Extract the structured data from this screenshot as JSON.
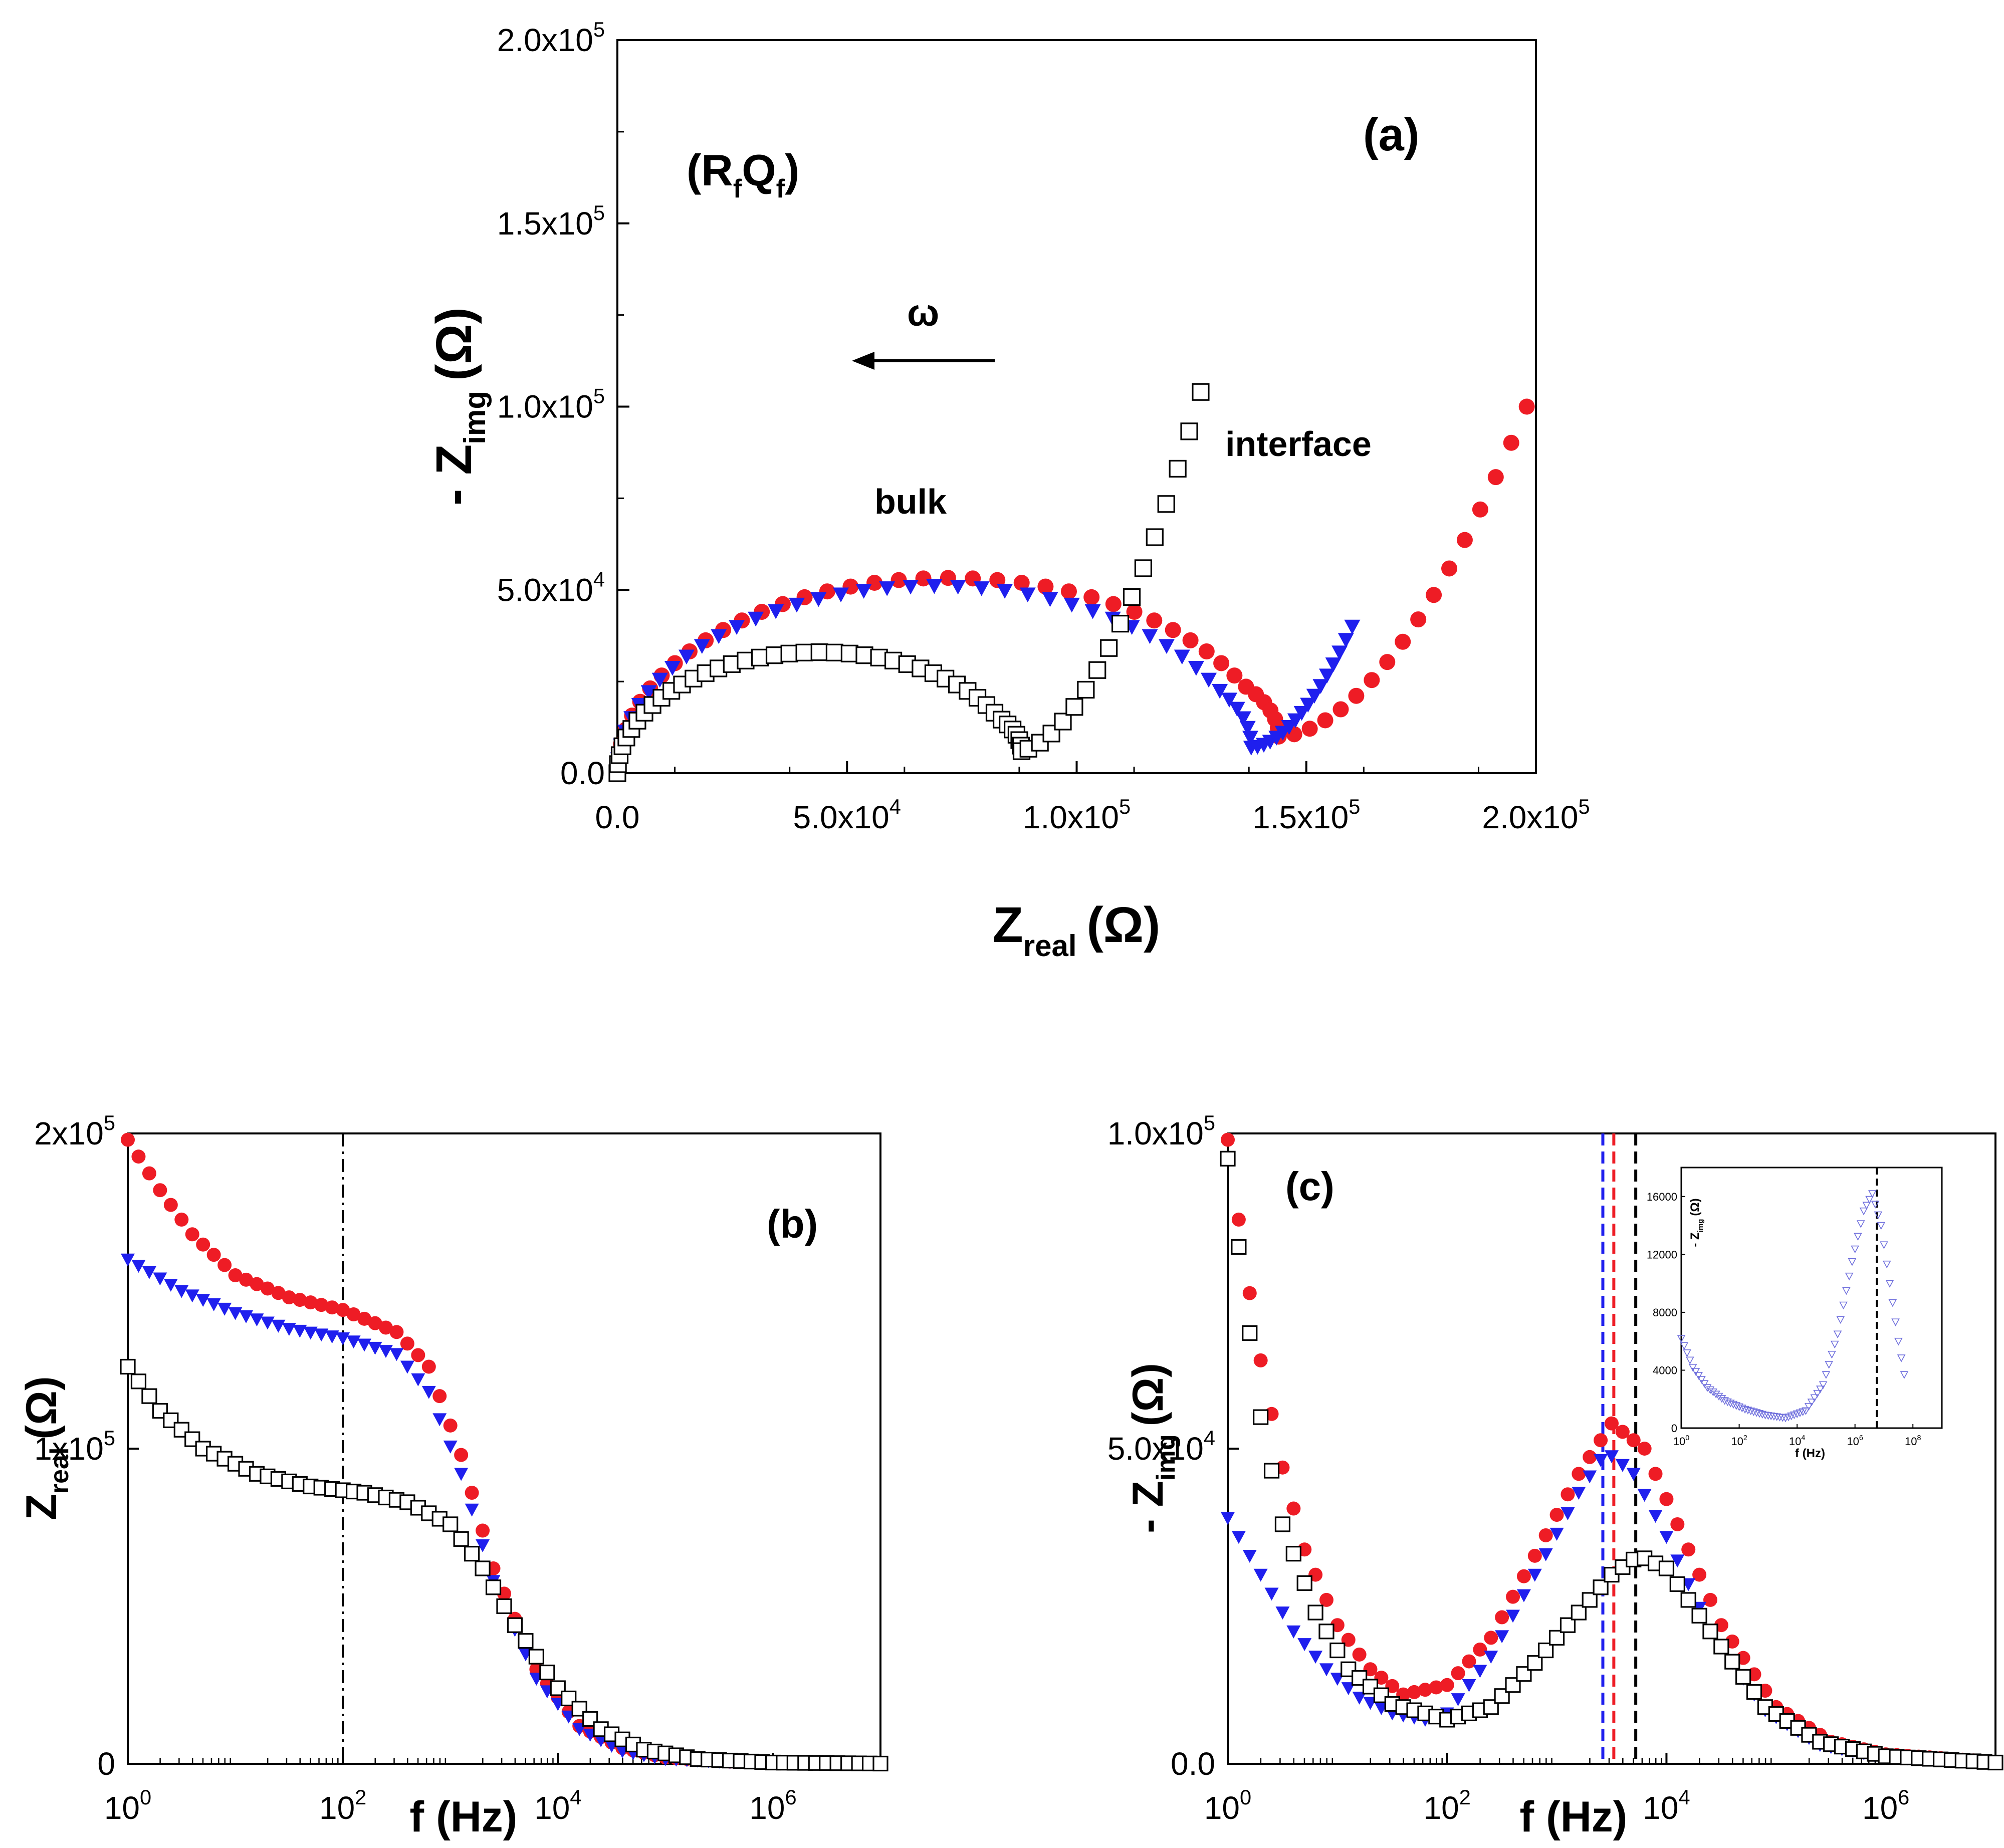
{
  "chart_data": [
    {
      "id": "a",
      "type": "scatter",
      "panel_label": "(a)",
      "xlabel": "Z",
      "xlabel_sub": "real",
      "xlabel_unit": "(Ω)",
      "ylabel_prefix": "- Z",
      "ylabel_sub": "img",
      "ylabel_unit": "(Ω)",
      "xlim": [
        0,
        200000
      ],
      "ylim": [
        0,
        200000
      ],
      "xticks": [
        {
          "value": 0,
          "mant": "0.0",
          "exp": ""
        },
        {
          "value": 50000,
          "mant": "5.0x10",
          "exp": "4"
        },
        {
          "value": 100000,
          "mant": "1.0x10",
          "exp": "5"
        },
        {
          "value": 150000,
          "mant": "1.5x10",
          "exp": "5"
        },
        {
          "value": 200000,
          "mant": "2.0x10",
          "exp": "5"
        }
      ],
      "yticks": [
        {
          "value": 0,
          "mant": "0.0",
          "exp": ""
        },
        {
          "value": 50000,
          "mant": "5.0x10",
          "exp": "4"
        },
        {
          "value": 100000,
          "mant": "1.0x10",
          "exp": "5"
        },
        {
          "value": 150000,
          "mant": "1.5x10",
          "exp": "5"
        },
        {
          "value": 200000,
          "mant": "2.0x10",
          "exp": "5"
        }
      ],
      "annotations": {
        "circuit": "(R",
        "circuit_sub1": "f",
        "circuit_mid": "Q",
        "circuit_sub2": "f",
        "circuit_end": ")",
        "omega": "ω",
        "bulk": "bulk",
        "interface": "interface"
      },
      "series": [
        {
          "name": "red-circles",
          "marker": "circle",
          "color": "#ee1c25",
          "semicircle": {
            "center": 72000,
            "radius": 72000,
            "tail_start": 144000,
            "tail_end": 198000,
            "tail_top": 100000,
            "tail_min": 10000
          }
        },
        {
          "name": "blue-triangles",
          "marker": "triangle-down",
          "color": "#1f1fee",
          "semicircle": {
            "center": 69000,
            "radius": 69000,
            "tail_start": 138000,
            "tail_end": 160000,
            "tail_top": 40000,
            "tail_min": 7000
          }
        },
        {
          "name": "black-squares",
          "marker": "square-open",
          "color": "#000000",
          "semicircle": {
            "center": 44000,
            "radius": 44000,
            "tail_start": 87000,
            "tail_end": 127000,
            "tail_top": 104000,
            "tail_min": 6000
          }
        }
      ]
    },
    {
      "id": "b",
      "type": "scatter",
      "panel_label": "(b)",
      "xlabel": "f (Hz)",
      "ylabel": "Z",
      "ylabel_sub": "real",
      "ylabel_unit": "(Ω)",
      "xscale": "log",
      "xlim_log10": [
        0,
        7
      ],
      "ylim": [
        0,
        200000
      ],
      "xticks": [
        {
          "value": 0,
          "mant": "10",
          "exp": "0"
        },
        {
          "value": 2,
          "mant": "10",
          "exp": "2"
        },
        {
          "value": 4,
          "mant": "10",
          "exp": "4"
        },
        {
          "value": 6,
          "mant": "10",
          "exp": "6"
        }
      ],
      "yticks": [
        {
          "value": 0,
          "mant": "0",
          "exp": ""
        },
        {
          "value": 100000,
          "mant": "1x10",
          "exp": "5"
        },
        {
          "value": 200000,
          "mant": "2x10",
          "exp": "5"
        }
      ],
      "vline_log10": 2,
      "series": [
        {
          "name": "red-circles",
          "marker": "circle",
          "color": "#ee1c25",
          "points": [
            [
              0,
              198000
            ],
            [
              0.3,
              182000
            ],
            [
              0.6,
              168000
            ],
            [
              1.0,
              155000
            ],
            [
              1.5,
              148000
            ],
            [
              2.0,
              144000
            ],
            [
              2.5,
              137000
            ],
            [
              2.8,
              126000
            ],
            [
              3.1,
              98000
            ],
            [
              3.4,
              62000
            ],
            [
              3.8,
              30000
            ],
            [
              4.2,
              12000
            ],
            [
              4.6,
              5000
            ],
            [
              5.0,
              2000
            ],
            [
              5.6,
              700
            ],
            [
              7.0,
              100
            ]
          ]
        },
        {
          "name": "blue-triangles",
          "marker": "triangle-down",
          "color": "#1f1fee",
          "points": [
            [
              0,
              160000
            ],
            [
              0.5,
              150000
            ],
            [
              1.0,
              143000
            ],
            [
              1.5,
              138000
            ],
            [
              2.0,
              135000
            ],
            [
              2.5,
              130000
            ],
            [
              2.8,
              118000
            ],
            [
              3.1,
              92000
            ],
            [
              3.4,
              58000
            ],
            [
              3.8,
              27000
            ],
            [
              4.2,
              11000
            ],
            [
              4.6,
              4000
            ],
            [
              5.0,
              1500
            ],
            [
              5.6,
              500
            ],
            [
              7.0,
              80
            ]
          ]
        },
        {
          "name": "black-squares",
          "marker": "square-open",
          "color": "#000000",
          "points": [
            [
              0,
              126000
            ],
            [
              0.3,
              112000
            ],
            [
              0.7,
              100000
            ],
            [
              1.2,
              92000
            ],
            [
              1.7,
              88000
            ],
            [
              2.2,
              86000
            ],
            [
              2.6,
              83000
            ],
            [
              3.0,
              76000
            ],
            [
              3.3,
              62000
            ],
            [
              3.6,
              44000
            ],
            [
              4.0,
              24000
            ],
            [
              4.4,
              11000
            ],
            [
              4.8,
              4500
            ],
            [
              5.3,
              1500
            ],
            [
              6.0,
              400
            ],
            [
              7.0,
              80
            ]
          ]
        }
      ]
    },
    {
      "id": "c",
      "type": "scatter",
      "panel_label": "(c)",
      "xlabel": "f (Hz)",
      "ylabel_prefix": "- Z",
      "ylabel_sub": "img",
      "ylabel_unit": "(Ω)",
      "xscale": "log",
      "xlim_log10": [
        0,
        7
      ],
      "ylim": [
        0,
        100000
      ],
      "xticks": [
        {
          "value": 0,
          "mant": "10",
          "exp": "0"
        },
        {
          "value": 2,
          "mant": "10",
          "exp": "2"
        },
        {
          "value": 4,
          "mant": "10",
          "exp": "4"
        },
        {
          "value": 6,
          "mant": "10",
          "exp": "6"
        }
      ],
      "yticks": [
        {
          "value": 0,
          "mant": "0.0",
          "exp": ""
        },
        {
          "value": 50000,
          "mant": "5.0x10",
          "exp": "4"
        },
        {
          "value": 100000,
          "mant": "1.0x10",
          "exp": "5"
        }
      ],
      "vlines": [
        {
          "x_log10": 3.42,
          "color": "#1f1fee"
        },
        {
          "x_log10": 3.52,
          "color": "#ee1c25"
        },
        {
          "x_log10": 3.72,
          "color": "#000000"
        }
      ],
      "series": [
        {
          "name": "red-circles",
          "marker": "circle",
          "color": "#ee1c25",
          "points": [
            [
              0,
              99000
            ],
            [
              0.15,
              80000
            ],
            [
              0.3,
              64000
            ],
            [
              0.5,
              47000
            ],
            [
              0.7,
              34000
            ],
            [
              1.0,
              22000
            ],
            [
              1.3,
              15000
            ],
            [
              1.6,
              11000
            ],
            [
              2.0,
              12500
            ],
            [
              2.4,
              20000
            ],
            [
              2.8,
              33000
            ],
            [
              3.2,
              46000
            ],
            [
              3.5,
              54000
            ],
            [
              3.8,
              50000
            ],
            [
              4.1,
              38000
            ],
            [
              4.5,
              22000
            ],
            [
              5.0,
              9000
            ],
            [
              5.5,
              3500
            ],
            [
              6.0,
              1500
            ],
            [
              7.0,
              300
            ]
          ]
        },
        {
          "name": "blue-triangles",
          "marker": "triangle-down",
          "color": "#1f1fee",
          "points": [
            [
              0,
              39000
            ],
            [
              0.3,
              30000
            ],
            [
              0.6,
              21000
            ],
            [
              0.9,
              15000
            ],
            [
              1.2,
              10500
            ],
            [
              1.5,
              8000
            ],
            [
              1.8,
              7000
            ],
            [
              2.0,
              8000
            ],
            [
              2.4,
              17000
            ],
            [
              2.8,
              30000
            ],
            [
              3.2,
              43000
            ],
            [
              3.45,
              49500
            ],
            [
              3.7,
              46000
            ],
            [
              4.0,
              36000
            ],
            [
              4.4,
              21000
            ],
            [
              4.9,
              8500
            ],
            [
              5.4,
              3000
            ],
            [
              6.0,
              1000
            ],
            [
              7.0,
              200
            ]
          ]
        },
        {
          "name": "black-squares",
          "marker": "square-open",
          "color": "#000000",
          "points": [
            [
              0,
              96000
            ],
            [
              0.15,
              75000
            ],
            [
              0.3,
              55000
            ],
            [
              0.5,
              38000
            ],
            [
              0.8,
              24000
            ],
            [
              1.1,
              15000
            ],
            [
              1.5,
              9500
            ],
            [
              2.0,
              7000
            ],
            [
              2.4,
              9000
            ],
            [
              2.8,
              16000
            ],
            [
              3.2,
              24000
            ],
            [
              3.5,
              30000
            ],
            [
              3.75,
              33000
            ],
            [
              4.0,
              31000
            ],
            [
              4.4,
              21000
            ],
            [
              4.9,
              9000
            ],
            [
              5.4,
              3500
            ],
            [
              6.0,
              1200
            ],
            [
              7.0,
              200
            ]
          ]
        }
      ],
      "inset": {
        "xscale": "log",
        "xlim_log10": [
          0,
          9
        ],
        "ylim": [
          0,
          18000
        ],
        "ylabel": "- Z",
        "ylabel_sub": "img",
        "ylabel_unit": "(Ω)",
        "xlabel": "f (Hz)",
        "xticks": [
          {
            "value": 0,
            "mant": "10",
            "exp": "0"
          },
          {
            "value": 2,
            "mant": "10",
            "exp": "2"
          },
          {
            "value": 4,
            "mant": "10",
            "exp": "4"
          },
          {
            "value": 6,
            "mant": "10",
            "exp": "6"
          },
          {
            "value": 8,
            "mant": "10",
            "exp": "8"
          }
        ],
        "yticks": [
          {
            "value": 0,
            "label": "0"
          },
          {
            "value": 4000,
            "label": "4000"
          },
          {
            "value": 8000,
            "label": "8000"
          },
          {
            "value": 12000,
            "label": "12000"
          },
          {
            "value": 16000,
            "label": "16000"
          }
        ],
        "vline_log10": 6.75,
        "series": {
          "name": "blue-open-triangles",
          "marker": "triangle-down-open",
          "color": "#7070dd",
          "points": [
            [
              0,
              6200
            ],
            [
              0.4,
              4200
            ],
            [
              0.9,
              2800
            ],
            [
              1.5,
              1900
            ],
            [
              2.2,
              1300
            ],
            [
              2.9,
              900
            ],
            [
              3.6,
              700
            ],
            [
              4.3,
              1200
            ],
            [
              4.9,
              3000
            ],
            [
              5.4,
              6500
            ],
            [
              5.9,
              11500
            ],
            [
              6.3,
              15000
            ],
            [
              6.6,
              16200
            ],
            [
              6.9,
              14000
            ],
            [
              7.2,
              10000
            ],
            [
              7.5,
              6000
            ],
            [
              7.7,
              3700
            ]
          ]
        }
      }
    }
  ]
}
